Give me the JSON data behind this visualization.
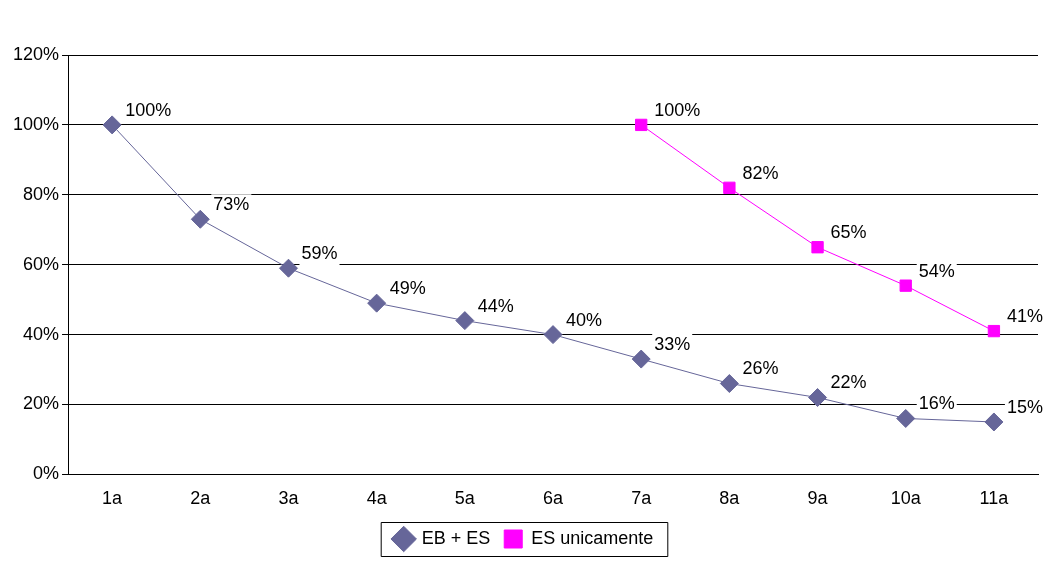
{
  "chart_data": {
    "type": "line",
    "categories": [
      "1a",
      "2a",
      "3a",
      "4a",
      "5a",
      "6a",
      "7a",
      "8a",
      "9a",
      "10a",
      "11a"
    ],
    "series": [
      {
        "name": "EB + ES",
        "color": "#666699",
        "marker": "diamond",
        "values": [
          100,
          73,
          59,
          49,
          44,
          40,
          33,
          26,
          22,
          16,
          15
        ],
        "value_labels": [
          "100%",
          "73%",
          "59%",
          "49%",
          "44%",
          "40%",
          "33%",
          "26%",
          "22%",
          "16%",
          "15%"
        ]
      },
      {
        "name": "ES unicamente",
        "color": "#ff00ff",
        "marker": "square",
        "values": [
          null,
          null,
          null,
          null,
          null,
          null,
          100,
          82,
          65,
          54,
          41
        ],
        "value_labels": [
          null,
          null,
          null,
          null,
          null,
          null,
          "100%",
          "82%",
          "65%",
          "54%",
          "41%"
        ]
      }
    ],
    "ylim": [
      0,
      120
    ],
    "yticks": [
      {
        "value": 0,
        "label": "0%"
      },
      {
        "value": 20,
        "label": "20%"
      },
      {
        "value": 40,
        "label": "40%"
      },
      {
        "value": 60,
        "label": "60%"
      },
      {
        "value": 80,
        "label": "80%"
      },
      {
        "value": 100,
        "label": "100%"
      },
      {
        "value": 120,
        "label": "120%"
      }
    ],
    "grid": "y",
    "legend": "bottom"
  }
}
